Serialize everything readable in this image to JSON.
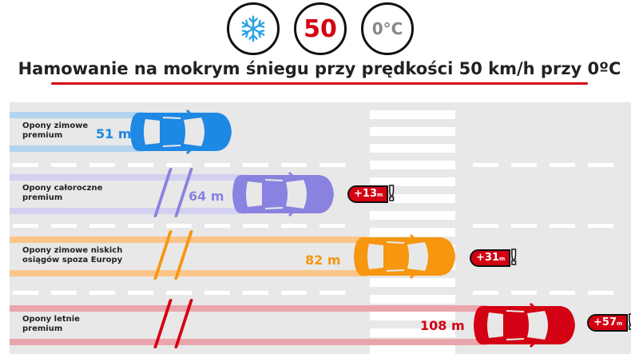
{
  "header": {
    "icons": [
      {
        "name": "snowflake-icon",
        "color": "#29a3e3"
      },
      {
        "text": "50",
        "color": "#d40013"
      },
      {
        "text": "0°C",
        "color": "#888888"
      }
    ],
    "title": "Hamowanie na mokrym śniegu przy prędkości 50 km/h przy 0ºC",
    "accent": "#d40013"
  },
  "lanes": [
    {
      "label_1": "Opony zimowe",
      "label_2": "premium",
      "distance": "51 m",
      "distance_m": 51,
      "diff": "",
      "color": "#1e88e5",
      "band": "#b4d3ee"
    },
    {
      "label_1": "Opony całoroczne",
      "label_2": "premium",
      "distance": "64 m",
      "distance_m": 64,
      "diff": "+13",
      "diff_unit": "m",
      "color": "#8a82e0",
      "band": "#d3d0f0"
    },
    {
      "label_1": "Opony zimowe niskich",
      "label_2": "osiągów spoza Europy",
      "distance": "82 m",
      "distance_m": 82,
      "diff": "+31",
      "diff_unit": "m",
      "color": "#f7960f",
      "band": "#fbc58a"
    },
    {
      "label_1": "Opony letnie",
      "label_2": "premium",
      "distance": "108 m",
      "distance_m": 108,
      "diff": "+57",
      "diff_unit": "m",
      "color": "#d40013",
      "band": "#e9a5ab"
    }
  ]
}
